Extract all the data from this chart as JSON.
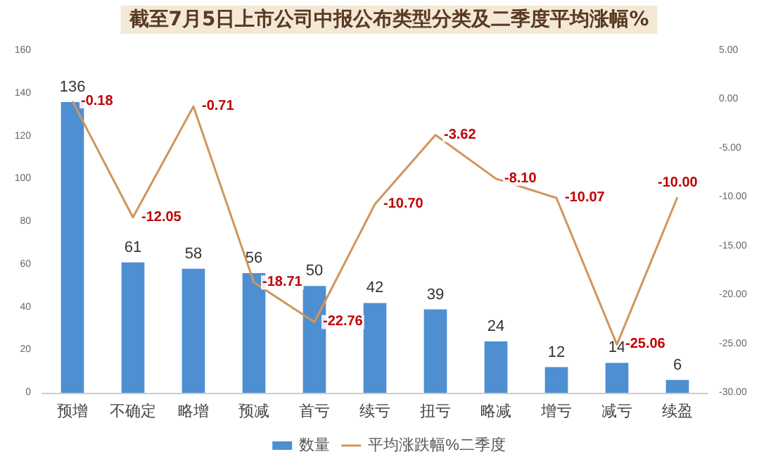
{
  "chart_data": {
    "type": "bar",
    "title": "截至7月5日上市公司中报公布类型分类及二季度平均涨幅%",
    "categories": [
      "预增",
      "不确定",
      "略增",
      "预减",
      "首亏",
      "续亏",
      "扭亏",
      "略减",
      "增亏",
      "减亏",
      "续盈"
    ],
    "series": [
      {
        "name": "数量",
        "color": "#4e8fd2",
        "values": [
          136,
          61,
          58,
          56,
          50,
          42,
          39,
          24,
          12,
          14,
          6
        ],
        "value_labels": [
          "136",
          "61",
          "58",
          "56",
          "50",
          "42",
          "39",
          "24",
          "12",
          "14",
          "6"
        ]
      },
      {
        "name": "平均涨跌幅%二季度",
        "type": "line",
        "axis": "y2",
        "color": "#d0955c",
        "values": [
          -0.18,
          -12.05,
          -0.71,
          -18.71,
          -22.76,
          -10.7,
          -3.62,
          -8.1,
          -10.07,
          -25.06,
          -10.0
        ],
        "value_labels": [
          "-0.18",
          "-12.05",
          "-0.71",
          "-18.71",
          "-22.76",
          "-10.70",
          "-3.62",
          "-8.10",
          "-10.07",
          "-25.06",
          "-10.00"
        ]
      }
    ],
    "ylim": [
      0,
      160
    ],
    "yticks": [
      0,
      20,
      40,
      60,
      80,
      100,
      120,
      140,
      160
    ],
    "y2lim": [
      -30,
      5
    ],
    "y2ticks": [
      {
        "value": -30,
        "label": "-30.00"
      },
      {
        "value": -25,
        "label": "-25.00"
      },
      {
        "value": -20,
        "label": "-20.00"
      },
      {
        "value": -15,
        "label": "-15.00"
      },
      {
        "value": -10,
        "label": "-10.00"
      },
      {
        "value": -5,
        "label": "-5.00"
      },
      {
        "value": 0,
        "label": "0.00"
      },
      {
        "value": 5,
        "label": "5.00"
      }
    ],
    "legend": "bottom",
    "grid": false,
    "marker": "none",
    "line_style": "solid"
  }
}
